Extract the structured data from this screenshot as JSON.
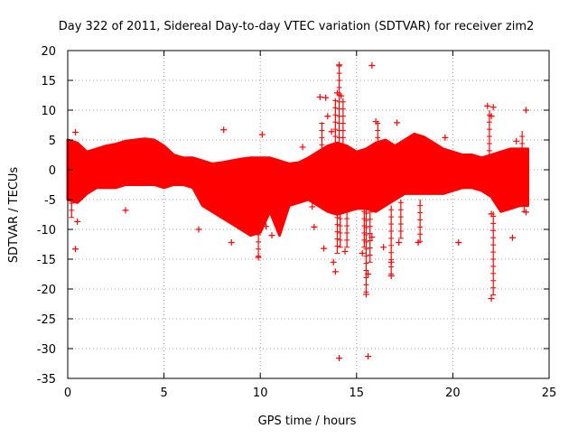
{
  "chart_data": {
    "type": "scatter",
    "title": "Day 322 of 2011, Sidereal Day-to-day VTEC variation (SDTVAR) for receiver zim2",
    "xlabel": "GPS time / hours",
    "ylabel": "SDTVAR / TECUs",
    "xlim": [
      0,
      25
    ],
    "ylim": [
      -35,
      20
    ],
    "xticks": [
      0,
      5,
      10,
      15,
      20,
      25
    ],
    "yticks": [
      -35,
      -30,
      -25,
      -20,
      -15,
      -10,
      -5,
      0,
      5,
      10,
      15,
      20
    ],
    "grid": true,
    "marker": "plus",
    "series_color": "#ff0000",
    "envelope": {
      "hours": [
        0.0,
        0.5,
        1.0,
        1.5,
        2.0,
        2.5,
        3.0,
        3.5,
        4.0,
        4.5,
        5.0,
        5.5,
        6.0,
        6.5,
        7.0,
        7.5,
        8.0,
        8.5,
        9.0,
        9.5,
        10.0,
        10.5,
        11.0,
        11.5,
        12.0,
        12.5,
        13.0,
        13.5,
        14.0,
        14.5,
        15.0,
        15.5,
        16.0,
        16.5,
        17.0,
        17.5,
        18.0,
        18.5,
        19.0,
        19.5,
        20.0,
        20.5,
        21.0,
        21.5,
        22.0,
        22.5,
        23.0,
        23.5,
        23.9
      ],
      "upper": [
        5.0,
        4.5,
        3.0,
        3.5,
        4.0,
        4.3,
        4.8,
        5.0,
        5.2,
        5.0,
        4.0,
        2.5,
        2.0,
        2.0,
        1.5,
        1.0,
        1.2,
        1.5,
        1.8,
        2.0,
        2.0,
        2.0,
        1.5,
        1.0,
        1.2,
        2.0,
        3.0,
        4.0,
        4.5,
        4.0,
        3.0,
        3.5,
        4.5,
        5.0,
        4.0,
        5.0,
        6.0,
        5.5,
        4.5,
        3.5,
        3.0,
        2.5,
        2.5,
        2.0,
        2.5,
        3.0,
        3.5,
        3.5,
        3.5
      ],
      "lower": [
        -5.0,
        -5.5,
        -4.0,
        -3.0,
        -3.0,
        -3.0,
        -2.5,
        -2.5,
        -2.5,
        -2.5,
        -3.0,
        -2.5,
        -2.5,
        -3.0,
        -6.0,
        -7.0,
        -8.0,
        -9.0,
        -10.0,
        -11.0,
        -10.5,
        -7.0,
        -11.0,
        -6.0,
        -5.5,
        -5.0,
        -6.0,
        -7.0,
        -7.5,
        -7.0,
        -6.5,
        -6.5,
        -7.0,
        -6.0,
        -5.0,
        -4.0,
        -4.0,
        -4.0,
        -4.0,
        -4.0,
        -3.5,
        -3.0,
        -3.0,
        -3.5,
        -4.5,
        -7.0,
        -6.5,
        -6.0,
        -6.0
      ]
    },
    "outliers": [
      {
        "x": 0.4,
        "y": 6.3
      },
      {
        "x": 0.4,
        "y": -13.3
      },
      {
        "x": 0.5,
        "y": -8.7
      },
      {
        "x": 3.0,
        "y": -6.8
      },
      {
        "x": 6.8,
        "y": -10.0
      },
      {
        "x": 8.1,
        "y": 6.7
      },
      {
        "x": 8.5,
        "y": -12.2
      },
      {
        "x": 9.9,
        "y": -14.7
      },
      {
        "x": 10.1,
        "y": 5.9
      },
      {
        "x": 10.3,
        "y": -9.5
      },
      {
        "x": 10.6,
        "y": -11.0
      },
      {
        "x": 12.2,
        "y": 3.8
      },
      {
        "x": 12.7,
        "y": -6.2
      },
      {
        "x": 12.8,
        "y": -9.6
      },
      {
        "x": 13.1,
        "y": 12.2
      },
      {
        "x": 13.3,
        "y": -13.2
      },
      {
        "x": 13.4,
        "y": 12.1
      },
      {
        "x": 13.5,
        "y": 9.0
      },
      {
        "x": 13.7,
        "y": 6.4
      },
      {
        "x": 13.9,
        "y": -17.1
      },
      {
        "x": 14.0,
        "y": 12.9
      },
      {
        "x": 13.8,
        "y": -15.5
      },
      {
        "x": 14.1,
        "y": 17.6
      },
      {
        "x": 14.1,
        "y": -31.6
      },
      {
        "x": 14.2,
        "y": 12.4
      },
      {
        "x": 14.4,
        "y": -13.7
      },
      {
        "x": 15.3,
        "y": -14.0
      },
      {
        "x": 15.5,
        "y": -20.9
      },
      {
        "x": 15.6,
        "y": -31.3
      },
      {
        "x": 15.6,
        "y": -17.5
      },
      {
        "x": 15.8,
        "y": 17.5
      },
      {
        "x": 15.8,
        "y": -11.3
      },
      {
        "x": 16.0,
        "y": 8.1
      },
      {
        "x": 16.4,
        "y": -13.0
      },
      {
        "x": 16.8,
        "y": -15.5
      },
      {
        "x": 16.8,
        "y": -17.8
      },
      {
        "x": 17.1,
        "y": 7.9
      },
      {
        "x": 17.2,
        "y": -12.2
      },
      {
        "x": 18.2,
        "y": -12.2
      },
      {
        "x": 19.6,
        "y": 5.4
      },
      {
        "x": 20.3,
        "y": -12.2
      },
      {
        "x": 21.8,
        "y": 10.7
      },
      {
        "x": 22.0,
        "y": 9.0
      },
      {
        "x": 22.1,
        "y": 10.5
      },
      {
        "x": 22.0,
        "y": -7.4
      },
      {
        "x": 22.0,
        "y": -21.6
      },
      {
        "x": 23.1,
        "y": -11.4
      },
      {
        "x": 23.3,
        "y": 4.8
      },
      {
        "x": 23.8,
        "y": 10.0
      },
      {
        "x": 23.8,
        "y": -7.1
      }
    ],
    "spikes": [
      {
        "x": 13.9,
        "from": 2.0,
        "to": 12.0
      },
      {
        "x": 14.0,
        "from": -14.0,
        "to": -6.0
      },
      {
        "x": 14.1,
        "from": 3.0,
        "to": 17.6
      },
      {
        "x": 14.15,
        "from": -13.0,
        "to": -5.0
      },
      {
        "x": 14.3,
        "from": 3.0,
        "to": 12.0
      },
      {
        "x": 14.5,
        "from": -13.0,
        "to": -6.0
      },
      {
        "x": 15.4,
        "from": -13.0,
        "to": -6.0
      },
      {
        "x": 15.5,
        "from": -20.5,
        "to": -6.0
      },
      {
        "x": 15.7,
        "from": -15.5,
        "to": -7.0
      },
      {
        "x": 16.1,
        "from": 3.0,
        "to": 8.0
      },
      {
        "x": 16.8,
        "from": -17.5,
        "to": -6.0
      },
      {
        "x": 17.3,
        "from": -11.5,
        "to": -5.0
      },
      {
        "x": 18.3,
        "from": -12.0,
        "to": -5.0
      },
      {
        "x": 13.2,
        "from": 3.0,
        "to": 8.0
      },
      {
        "x": 9.9,
        "from": -14.5,
        "to": -8.0
      },
      {
        "x": 21.9,
        "from": 2.0,
        "to": 10.0
      },
      {
        "x": 22.1,
        "from": -21.0,
        "to": -7.0
      },
      {
        "x": 23.6,
        "from": 2.0,
        "to": 6.5
      },
      {
        "x": 23.7,
        "from": -7.0,
        "to": -2.0
      },
      {
        "x": 0.2,
        "from": -8.0,
        "to": 5.0
      }
    ]
  }
}
